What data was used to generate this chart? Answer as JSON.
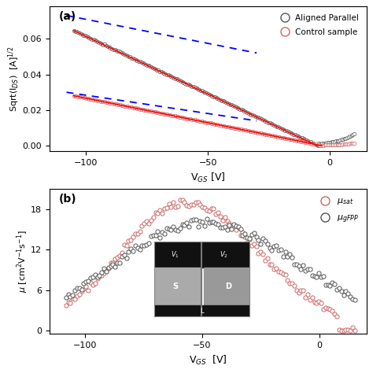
{
  "panel_a": {
    "title": "(a)",
    "xlabel": "V$_{GS}$ [V]",
    "ylabel": "Sqrt(I$_{DS}$)  [A]$^{1/2}$",
    "xlim": [
      -115,
      15
    ],
    "ylim": [
      -0.003,
      0.078
    ],
    "yticks": [
      0.0,
      0.02,
      0.04,
      0.06
    ],
    "xticks": [
      -100,
      -50,
      0
    ],
    "legend_labels": [
      "Aligned Parallel",
      "Control sample"
    ],
    "legend_colors": [
      "#555555",
      "#cc6666"
    ],
    "background": "#ffffff"
  },
  "panel_b": {
    "title": "(b)",
    "xlabel": "V$_{GS}$  [V]",
    "ylabel": "$\\mu$ [cm$^2$V$^{-1}$s$^{-1}$]",
    "xlim": [
      -115,
      20
    ],
    "ylim": [
      -0.5,
      21
    ],
    "yticks": [
      0,
      6,
      12,
      18
    ],
    "xticks": [
      -100,
      -50,
      0
    ],
    "legend_labels": [
      "$\\mu_{sat}$",
      "$\\mu_{gFPP}$"
    ],
    "legend_colors": [
      "#cc6666",
      "#555555"
    ],
    "background": "#ffffff"
  }
}
